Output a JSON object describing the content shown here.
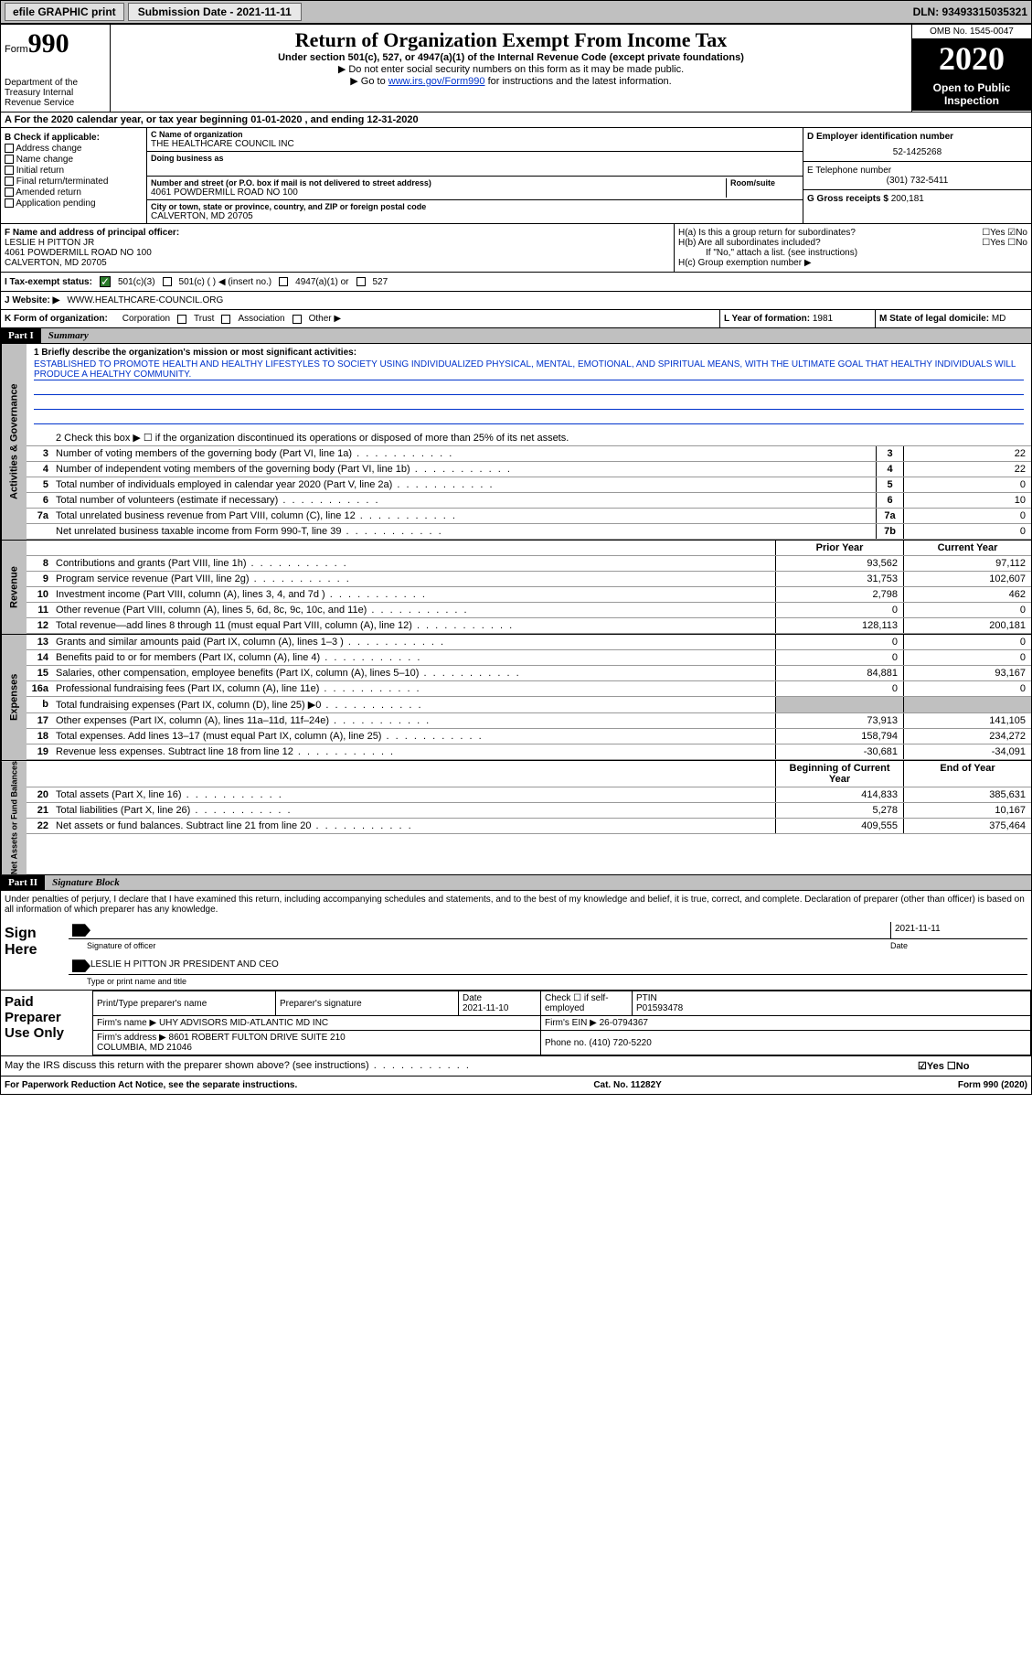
{
  "topbar": {
    "efile": "efile GRAPHIC print",
    "submission": "Submission Date - 2021-11-11",
    "dln": "DLN: 93493315035321"
  },
  "header": {
    "form_prefix": "Form",
    "form_num": "990",
    "dept": "Department of the Treasury\nInternal Revenue Service",
    "title": "Return of Organization Exempt From Income Tax",
    "subtitle": "Under section 501(c), 527, or 4947(a)(1) of the Internal Revenue Code (except private foundations)",
    "warn1": "▶ Do not enter social security numbers on this form as it may be made public.",
    "warn2_pre": "▶ Go to ",
    "warn2_link": "www.irs.gov/Form990",
    "warn2_post": " for instructions and the latest information.",
    "omb": "OMB No. 1545-0047",
    "year": "2020",
    "open": "Open to Public Inspection"
  },
  "period": "A For the 2020 calendar year, or tax year beginning 01-01-2020   , and ending 12-31-2020",
  "boxB": {
    "title": "B Check if applicable:",
    "opts": [
      "Address change",
      "Name change",
      "Initial return",
      "Final return/terminated",
      "Amended return",
      "Application pending"
    ]
  },
  "boxC": {
    "name_lbl": "C Name of organization",
    "name": "THE HEALTHCARE COUNCIL INC",
    "dba_lbl": "Doing business as",
    "addr_lbl": "Number and street (or P.O. box if mail is not delivered to street address)",
    "room_lbl": "Room/suite",
    "addr": "4061 POWDERMILL ROAD NO 100",
    "city_lbl": "City or town, state or province, country, and ZIP or foreign postal code",
    "city": "CALVERTON, MD  20705"
  },
  "boxD": {
    "lbl": "D Employer identification number",
    "val": "52-1425268"
  },
  "boxE": {
    "lbl": "E Telephone number",
    "val": "(301) 732-5411"
  },
  "boxG": {
    "lbl": "G Gross receipts $",
    "val": "200,181"
  },
  "boxF": {
    "lbl": "F Name and address of principal officer:",
    "name": "LESLIE H PITTON JR",
    "addr1": "4061 POWDERMILL ROAD NO 100",
    "addr2": "CALVERTON, MD  20705"
  },
  "boxH": {
    "a": "H(a)  Is this a group return for subordinates?",
    "a_ans": "☐Yes ☑No",
    "b": "H(b)  Are all subordinates included?",
    "b_ans": "☐Yes ☐No",
    "b_note": "If \"No,\" attach a list. (see instructions)",
    "c": "H(c)  Group exemption number ▶"
  },
  "boxI": {
    "lbl": "I   Tax-exempt status:",
    "o1": "501(c)(3)",
    "o2": "501(c) (  ) ◀ (insert no.)",
    "o3": "4947(a)(1) or",
    "o4": "527"
  },
  "boxJ": {
    "lbl": "J   Website: ▶",
    "val": "WWW.HEALTHCARE-COUNCIL.ORG"
  },
  "boxK": {
    "lbl": "K Form of organization:",
    "o1": "Corporation",
    "o2": "Trust",
    "o3": "Association",
    "o4": "Other ▶"
  },
  "boxL": {
    "lbl": "L Year of formation:",
    "val": "1981"
  },
  "boxM": {
    "lbl": "M State of legal domicile:",
    "val": "MD"
  },
  "part1": {
    "hdr": "Part I",
    "title": "Summary",
    "l1_lbl": "1  Briefly describe the organization's mission or most significant activities:",
    "l1_txt": "ESTABLISHED TO PROMOTE HEALTH AND HEALTHY LIFESTYLES TO SOCIETY USING INDIVIDUALIZED PHYSICAL, MENTAL, EMOTIONAL, AND SPIRITUAL MEANS, WITH THE ULTIMATE GOAL THAT HEALTHY INDIVIDUALS WILL PRODUCE A HEALTHY COMMUNITY.",
    "l2": "2   Check this box ▶ ☐  if the organization discontinued its operations or disposed of more than 25% of its net assets.",
    "vtab_gov": "Activities & Governance",
    "vtab_rev": "Revenue",
    "vtab_exp": "Expenses",
    "vtab_net": "Net Assets or Fund Balances",
    "hdr_prior": "Prior Year",
    "hdr_curr": "Current Year",
    "hdr_beg": "Beginning of Current Year",
    "hdr_end": "End of Year",
    "lines_gov": [
      {
        "n": "3",
        "d": "Number of voting members of the governing body (Part VI, line 1a)",
        "c": "3",
        "v": "22"
      },
      {
        "n": "4",
        "d": "Number of independent voting members of the governing body (Part VI, line 1b)",
        "c": "4",
        "v": "22"
      },
      {
        "n": "5",
        "d": "Total number of individuals employed in calendar year 2020 (Part V, line 2a)",
        "c": "5",
        "v": "0"
      },
      {
        "n": "6",
        "d": "Total number of volunteers (estimate if necessary)",
        "c": "6",
        "v": "10"
      },
      {
        "n": "7a",
        "d": "Total unrelated business revenue from Part VIII, column (C), line 12",
        "c": "7a",
        "v": "0"
      },
      {
        "n": "",
        "d": "Net unrelated business taxable income from Form 990-T, line 39",
        "c": "7b",
        "v": "0"
      }
    ],
    "lines_rev": [
      {
        "n": "8",
        "d": "Contributions and grants (Part VIII, line 1h)",
        "p": "93,562",
        "v": "97,112"
      },
      {
        "n": "9",
        "d": "Program service revenue (Part VIII, line 2g)",
        "p": "31,753",
        "v": "102,607"
      },
      {
        "n": "10",
        "d": "Investment income (Part VIII, column (A), lines 3, 4, and 7d )",
        "p": "2,798",
        "v": "462"
      },
      {
        "n": "11",
        "d": "Other revenue (Part VIII, column (A), lines 5, 6d, 8c, 9c, 10c, and 11e)",
        "p": "0",
        "v": "0"
      },
      {
        "n": "12",
        "d": "Total revenue—add lines 8 through 11 (must equal Part VIII, column (A), line 12)",
        "p": "128,113",
        "v": "200,181"
      }
    ],
    "lines_exp": [
      {
        "n": "13",
        "d": "Grants and similar amounts paid (Part IX, column (A), lines 1–3 )",
        "p": "0",
        "v": "0"
      },
      {
        "n": "14",
        "d": "Benefits paid to or for members (Part IX, column (A), line 4)",
        "p": "0",
        "v": "0"
      },
      {
        "n": "15",
        "d": "Salaries, other compensation, employee benefits (Part IX, column (A), lines 5–10)",
        "p": "84,881",
        "v": "93,167"
      },
      {
        "n": "16a",
        "d": "Professional fundraising fees (Part IX, column (A), line 11e)",
        "p": "0",
        "v": "0"
      },
      {
        "n": "b",
        "d": "Total fundraising expenses (Part IX, column (D), line 25) ▶0",
        "p": "",
        "v": "",
        "shade": true
      },
      {
        "n": "17",
        "d": "Other expenses (Part IX, column (A), lines 11a–11d, 11f–24e)",
        "p": "73,913",
        "v": "141,105"
      },
      {
        "n": "18",
        "d": "Total expenses. Add lines 13–17 (must equal Part IX, column (A), line 25)",
        "p": "158,794",
        "v": "234,272"
      },
      {
        "n": "19",
        "d": "Revenue less expenses. Subtract line 18 from line 12",
        "p": "-30,681",
        "v": "-34,091"
      }
    ],
    "lines_net": [
      {
        "n": "20",
        "d": "Total assets (Part X, line 16)",
        "p": "414,833",
        "v": "385,631"
      },
      {
        "n": "21",
        "d": "Total liabilities (Part X, line 26)",
        "p": "5,278",
        "v": "10,167"
      },
      {
        "n": "22",
        "d": "Net assets or fund balances. Subtract line 21 from line 20",
        "p": "409,555",
        "v": "375,464"
      }
    ]
  },
  "part2": {
    "hdr": "Part II",
    "title": "Signature Block",
    "intro": "Under penalties of perjury, I declare that I have examined this return, including accompanying schedules and statements, and to the best of my knowledge and belief, it is true, correct, and complete. Declaration of preparer (other than officer) is based on all information of which preparer has any knowledge.",
    "sign_here": "Sign Here",
    "sig_officer": "Signature of officer",
    "sig_date": "2021-11-11",
    "date_lbl": "Date",
    "officer_name": "LESLIE H PITTON JR  PRESIDENT AND CEO",
    "officer_lbl": "Type or print name and title",
    "paid": "Paid Preparer Use Only",
    "prep_name_lbl": "Print/Type preparer's name",
    "prep_sig_lbl": "Preparer's signature",
    "prep_date_lbl": "Date",
    "prep_date": "2021-11-10",
    "prep_chk": "Check ☐ if self-employed",
    "ptin_lbl": "PTIN",
    "ptin": "P01593478",
    "firm_name_lbl": "Firm's name    ▶",
    "firm_name": "UHY ADVISORS MID-ATLANTIC MD INC",
    "firm_ein_lbl": "Firm's EIN ▶",
    "firm_ein": "26-0794367",
    "firm_addr_lbl": "Firm's address ▶",
    "firm_addr": "8601 ROBERT FULTON DRIVE SUITE 210\nCOLUMBIA, MD  21046",
    "firm_phone_lbl": "Phone no.",
    "firm_phone": "(410) 720-5220",
    "discuss": "May the IRS discuss this return with the preparer shown above? (see instructions)",
    "discuss_ans": "☑Yes  ☐No"
  },
  "footer": {
    "pra": "For Paperwork Reduction Act Notice, see the separate instructions.",
    "cat": "Cat. No. 11282Y",
    "form": "Form 990 (2020)"
  }
}
